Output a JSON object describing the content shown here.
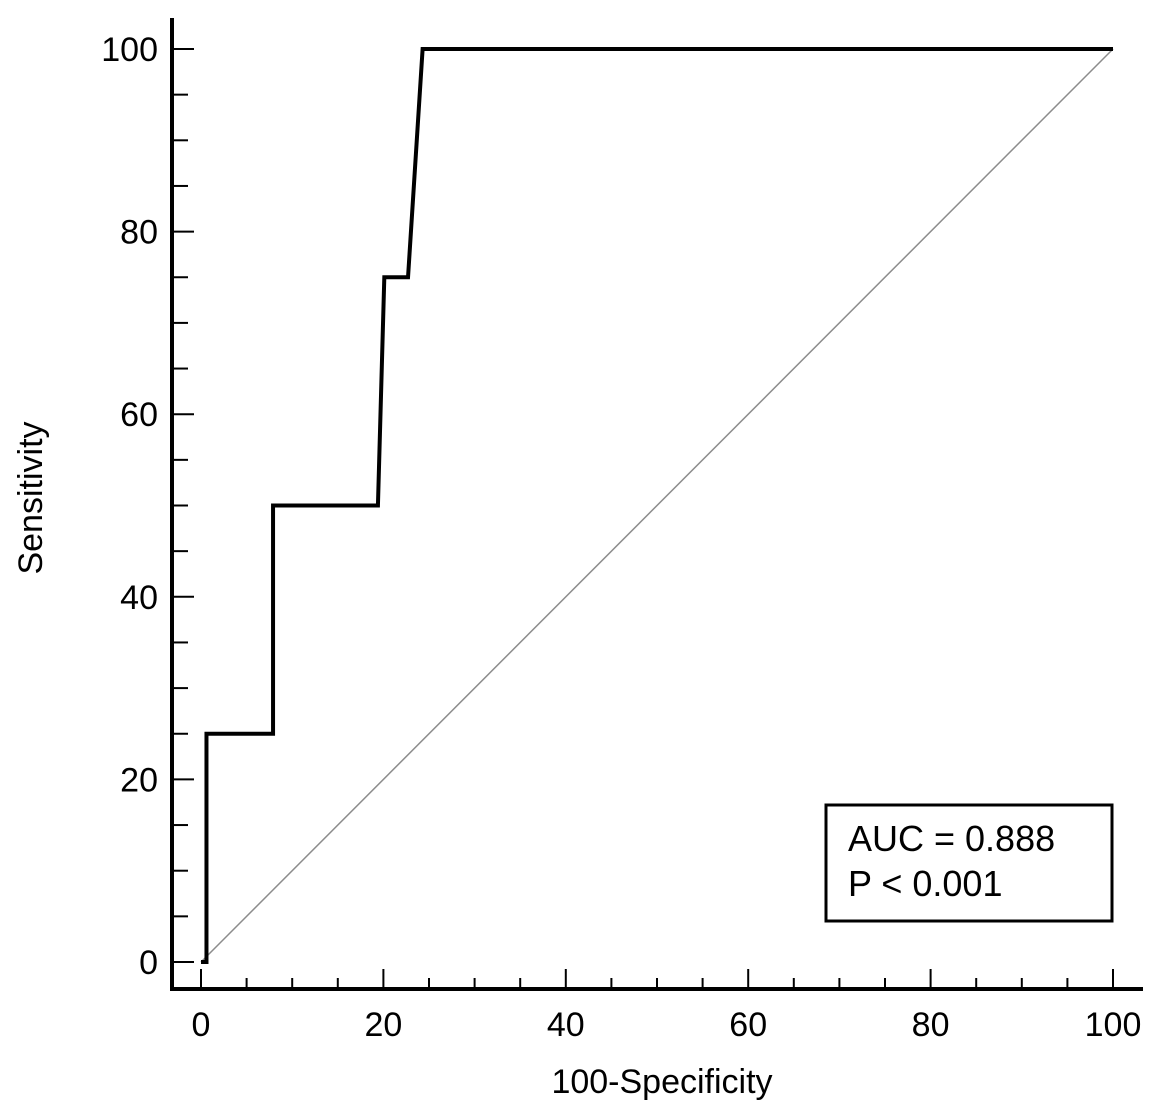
{
  "chart_data": {
    "type": "line",
    "title": "",
    "xlabel": "100-Specificity",
    "ylabel": "Sensitivity",
    "xlim": [
      0,
      100
    ],
    "ylim": [
      0,
      100
    ],
    "x_ticks": [
      0,
      20,
      40,
      60,
      80,
      100
    ],
    "y_ticks": [
      0,
      20,
      40,
      60,
      80,
      100
    ],
    "x_tick_labels": [
      "0",
      "20",
      "40",
      "60",
      "80",
      "100"
    ],
    "y_tick_labels": [
      "0",
      "20",
      "40",
      "60",
      "80",
      "100"
    ],
    "grid": false,
    "series": [
      {
        "x": [
          0,
          0.6,
          0.6,
          7.9,
          7.9,
          19.4,
          20.1,
          22.7,
          24.3,
          100
        ],
        "y": [
          0,
          0,
          25,
          25,
          50,
          50,
          75,
          75,
          100,
          100
        ]
      },
      {
        "x": [
          0,
          100
        ],
        "y": [
          0,
          100
        ]
      }
    ],
    "annotations": [
      {
        "text": "AUC = 0.888"
      },
      {
        "text": "P < 0.001"
      }
    ],
    "annotation_position": "bottom-right",
    "colors": {
      "roc": "#000000",
      "reference": "#8c8c8c"
    }
  }
}
